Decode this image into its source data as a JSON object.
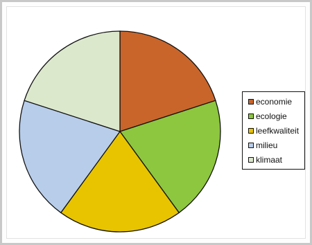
{
  "chart_data": {
    "type": "pie",
    "categories": [
      "economie",
      "ecologie",
      "leefkwaliteit",
      "milieu",
      "klimaat"
    ],
    "values": [
      20,
      20,
      20,
      20,
      20
    ],
    "colors": [
      "#c9652a",
      "#8dc63f",
      "#e8c400",
      "#b8cdea",
      "#dce8cc"
    ],
    "legend_position": "right"
  }
}
